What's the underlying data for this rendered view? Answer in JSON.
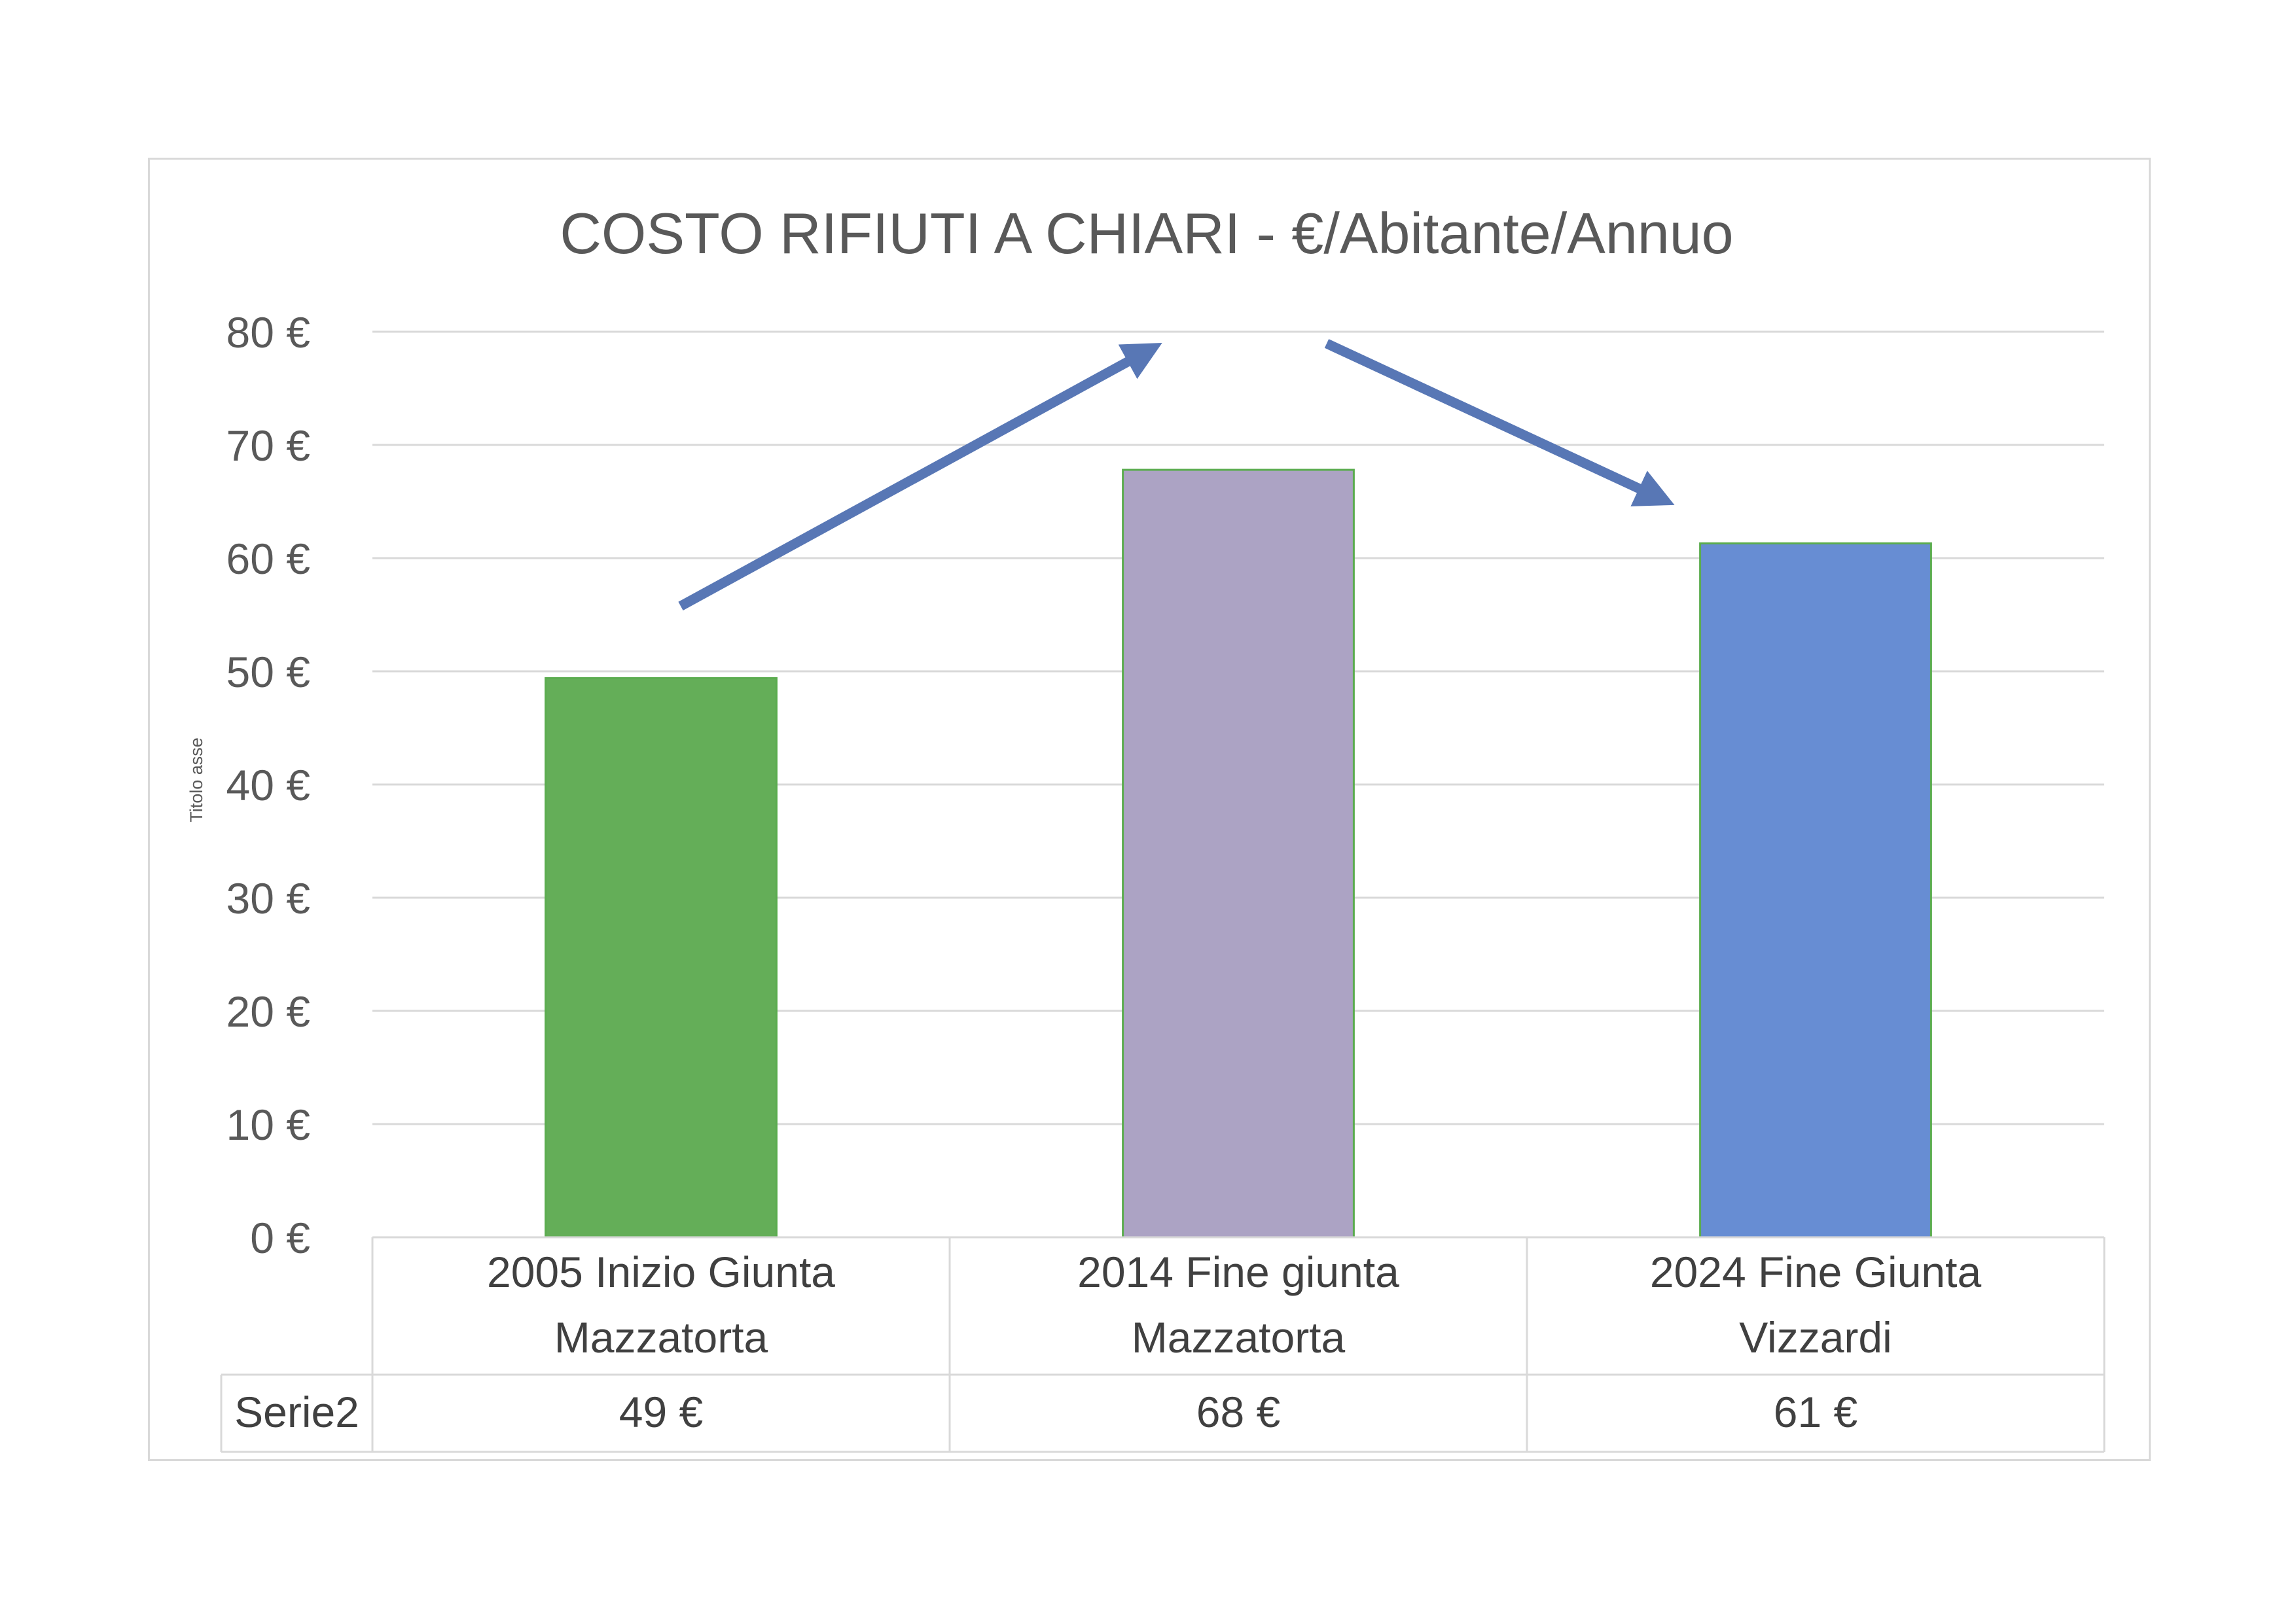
{
  "chart_data": {
    "type": "bar",
    "title": "COSTO RIFIUTI A CHIARI - €/Abitante/Annuo",
    "ylabel": "Titolo asse",
    "xlabel": "",
    "ylim": [
      0,
      80
    ],
    "y_ticks": [
      0,
      10,
      20,
      30,
      40,
      50,
      60,
      70,
      80
    ],
    "y_tick_labels": [
      "0 €",
      "10 €",
      "20 €",
      "30 €",
      "40 €",
      "50 €",
      "60 €",
      "70 €",
      "80 €"
    ],
    "grid": true,
    "categories": [
      [
        "2005  Inizio Giunta",
        "Mazzatorta"
      ],
      [
        "2014 Fine giunta",
        "Mazzatorta"
      ],
      [
        "2024  Fine Giunta",
        "Vizzardi"
      ]
    ],
    "series": [
      {
        "name": "Serie2",
        "values": [
          49.4,
          67.8,
          61.3
        ],
        "value_labels": [
          "49 €",
          "68 €",
          "61 €"
        ],
        "bar_colors": [
          "#64ae58",
          "#aca3c4",
          "#678dd3"
        ],
        "edge_color": "#5bac4f"
      }
    ],
    "data_table": true,
    "annotations": [
      {
        "type": "arrow",
        "direction": "up",
        "from_category": 0,
        "to_category": 1
      },
      {
        "type": "arrow",
        "direction": "down",
        "from_category": 1,
        "to_category": 2
      }
    ],
    "arrow_color": "#5877b5",
    "gridline_color": "#d9d9d9",
    "text_color": "#595959"
  }
}
